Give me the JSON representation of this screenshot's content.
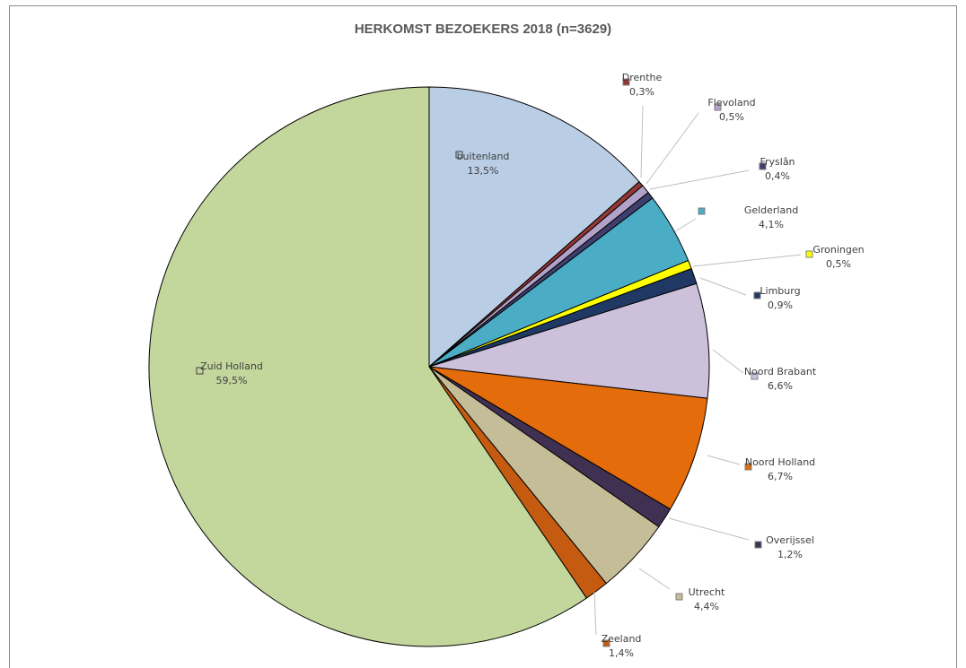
{
  "chart_data": {
    "type": "pie",
    "title": "HERKOMST BEZOEKERS  2018 (n=3629)",
    "legend": "none",
    "slices": [
      {
        "name": "buitenland",
        "value": 13.5,
        "label": "13,5%",
        "color": "#b9cde5"
      },
      {
        "name": "Drenthe",
        "value": 0.3,
        "label": "0,3%",
        "color": "#953735"
      },
      {
        "name": "Flevoland",
        "value": 0.5,
        "label": "0,5%",
        "color": "#b3a2c7"
      },
      {
        "name": "Fryslân",
        "value": 0.4,
        "label": "0,4%",
        "color": "#3f3f6e"
      },
      {
        "name": "Gelderland",
        "value": 4.1,
        "label": "4,1%",
        "color": "#4bacc6"
      },
      {
        "name": "Groningen",
        "value": 0.5,
        "label": "0,5%",
        "color": "#ffff00"
      },
      {
        "name": "Limburg",
        "value": 0.9,
        "label": "0,9%",
        "color": "#1f3864"
      },
      {
        "name": "Noord Brabant",
        "value": 6.6,
        "label": "6,6%",
        "color": "#ccc0da"
      },
      {
        "name": "Noord Holland",
        "value": 6.7,
        "label": "6,7%",
        "color": "#e46c0a"
      },
      {
        "name": "Overijssel",
        "value": 1.2,
        "label": "1,2%",
        "color": "#403152"
      },
      {
        "name": "Utrecht",
        "value": 4.4,
        "label": "4,4%",
        "color": "#c4bd97"
      },
      {
        "name": "Zeeland",
        "value": 1.4,
        "label": "1,4%",
        "color": "#c55a11"
      },
      {
        "name": "Zuid Holland",
        "value": 59.5,
        "label": "59,5%",
        "color": "#c3d69b"
      }
    ]
  }
}
